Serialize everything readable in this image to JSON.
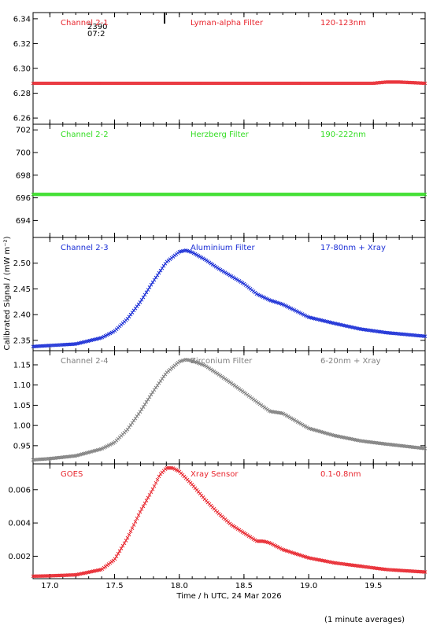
{
  "figure": {
    "ylabel": "Calibrated Signal / (mW m⁻²)",
    "xlabel": "Time / h UTC, 24 Mar 2026",
    "footnote": "(1 minute averages)"
  },
  "overlay": {
    "text1": "2390",
    "text2": "07:2"
  },
  "colors": {
    "ch21": "#e8262e",
    "ch22": "#33dd22",
    "ch23": "#1a2ed6",
    "ch24": "#808080",
    "goes": "#e8262e",
    "axis": "#000000"
  },
  "chart_data": [
    {
      "type": "scatter",
      "panel": "Channel 2-1",
      "labels": [
        "Channel 2-1",
        "Lyman-alpha Filter",
        "120-123nm"
      ],
      "ylim": [
        6.255,
        6.345
      ],
      "yticks": [
        "6.26",
        "6.28",
        "6.30",
        "6.32",
        "6.34"
      ],
      "xlim": [
        16.87,
        19.9
      ],
      "x": [
        16.87,
        17.2,
        17.5,
        17.8,
        18.1,
        18.4,
        18.7,
        19.0,
        19.3,
        19.5,
        19.6,
        19.7,
        19.9
      ],
      "y": [
        6.288,
        6.288,
        6.288,
        6.288,
        6.288,
        6.288,
        6.288,
        6.288,
        6.288,
        6.288,
        6.289,
        6.289,
        6.288
      ]
    },
    {
      "type": "scatter",
      "panel": "Channel 2-2",
      "labels": [
        "Channel 2-2",
        "Herzberg Filter",
        "190-222nm"
      ],
      "ylim": [
        692.5,
        702.5
      ],
      "yticks": [
        "694",
        "696",
        "698",
        "700",
        "702"
      ],
      "xlim": [
        16.87,
        19.9
      ],
      "x": [
        16.87,
        17.5,
        18.0,
        18.5,
        19.0,
        19.5,
        19.9
      ],
      "y": [
        696.3,
        696.3,
        696.3,
        696.3,
        696.3,
        696.3,
        696.3
      ]
    },
    {
      "type": "scatter",
      "panel": "Channel 2-3",
      "labels": [
        "Channel 2-3",
        "Aluminium Filter",
        "17-80nm + Xray"
      ],
      "ylim": [
        2.33,
        2.55
      ],
      "yticks": [
        "2.35",
        "2.40",
        "2.45",
        "2.50"
      ],
      "xlim": [
        16.87,
        19.9
      ],
      "x": [
        16.87,
        17.0,
        17.2,
        17.4,
        17.5,
        17.6,
        17.7,
        17.8,
        17.9,
        18.0,
        18.05,
        18.1,
        18.2,
        18.3,
        18.4,
        18.5,
        18.6,
        18.7,
        18.8,
        19.0,
        19.2,
        19.4,
        19.6,
        19.9
      ],
      "y": [
        2.338,
        2.34,
        2.343,
        2.355,
        2.368,
        2.392,
        2.425,
        2.465,
        2.502,
        2.522,
        2.525,
        2.521,
        2.507,
        2.49,
        2.475,
        2.46,
        2.44,
        2.428,
        2.42,
        2.395,
        2.383,
        2.372,
        2.365,
        2.358
      ]
    },
    {
      "type": "scatter",
      "panel": "Channel 2-4",
      "labels": [
        "Channel 2-4",
        "Zirconium Filter",
        "6-20nm + Xray"
      ],
      "ylim": [
        0.905,
        1.185
      ],
      "yticks": [
        "0.95",
        "1.00",
        "1.05",
        "1.10",
        "1.15"
      ],
      "xlim": [
        16.87,
        19.9
      ],
      "x": [
        16.87,
        17.0,
        17.2,
        17.4,
        17.5,
        17.6,
        17.7,
        17.8,
        17.9,
        18.0,
        18.05,
        18.1,
        18.2,
        18.3,
        18.4,
        18.5,
        18.6,
        18.7,
        18.8,
        19.0,
        19.2,
        19.4,
        19.6,
        19.9
      ],
      "y": [
        0.915,
        0.918,
        0.925,
        0.942,
        0.958,
        0.99,
        1.035,
        1.085,
        1.13,
        1.158,
        1.163,
        1.16,
        1.148,
        1.127,
        1.105,
        1.082,
        1.058,
        1.035,
        1.03,
        0.993,
        0.975,
        0.962,
        0.954,
        0.943
      ]
    },
    {
      "type": "scatter",
      "panel": "GOES",
      "labels": [
        "GOES",
        "Xray Sensor",
        "0.1-0.8nm"
      ],
      "ylim": [
        0.00065,
        0.00755
      ],
      "yticks": [
        "0.002",
        "0.004",
        "0.006"
      ],
      "xlim": [
        16.87,
        19.9
      ],
      "xticks": [
        "17.0",
        "17.5",
        "18.0",
        "18.5",
        "19.0",
        "19.5"
      ],
      "x": [
        16.87,
        17.0,
        17.2,
        17.4,
        17.5,
        17.6,
        17.7,
        17.8,
        17.85,
        17.9,
        17.95,
        18.0,
        18.1,
        18.2,
        18.3,
        18.4,
        18.5,
        18.6,
        18.65,
        18.7,
        18.8,
        19.0,
        19.2,
        19.4,
        19.6,
        19.9
      ],
      "y": [
        0.0008,
        0.00082,
        0.00088,
        0.0012,
        0.0018,
        0.0031,
        0.0047,
        0.0061,
        0.0069,
        0.0073,
        0.0073,
        0.0071,
        0.0063,
        0.0054,
        0.0046,
        0.0039,
        0.0034,
        0.0029,
        0.0029,
        0.0028,
        0.0024,
        0.0019,
        0.0016,
        0.0014,
        0.0012,
        0.00105
      ]
    }
  ]
}
